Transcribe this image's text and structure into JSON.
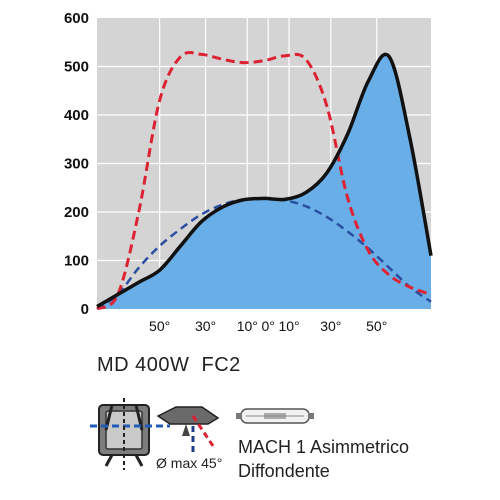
{
  "chart_data": {
    "type": "line",
    "ylim": [
      0,
      600
    ],
    "y_ticks": [
      "0",
      "100",
      "200",
      "300",
      "400",
      "500",
      "600"
    ],
    "x_tick_labels": [
      "50°",
      "30°",
      "10°",
      "0°",
      "10°",
      "30°",
      "50°"
    ],
    "grid": true,
    "series": [
      {
        "style": "solid-filled",
        "color": "#111111",
        "fill": "#6aaee8",
        "x": [
          0,
          1,
          2,
          3,
          4,
          5,
          6,
          7,
          8,
          9,
          10,
          11,
          12,
          13,
          14,
          15,
          16
        ],
        "values": [
          5,
          30,
          55,
          80,
          130,
          180,
          210,
          225,
          228,
          226,
          240,
          280,
          360,
          470,
          520,
          350,
          110
        ]
      },
      {
        "style": "dashed",
        "color": "#dd2233",
        "x": [
          0,
          1,
          2,
          3,
          4,
          5,
          6,
          7,
          8,
          9,
          10,
          11,
          12,
          13,
          14,
          15,
          16
        ],
        "values": [
          0,
          30,
          200,
          430,
          520,
          525,
          515,
          508,
          512,
          522,
          515,
          420,
          230,
          120,
          70,
          45,
          30
        ]
      },
      {
        "style": "dashed",
        "color": "#2a4ea0",
        "x": [
          0,
          1,
          2,
          3,
          4,
          5,
          6,
          7,
          8,
          9,
          10,
          11,
          12,
          13,
          14,
          15,
          16
        ],
        "values": [
          0,
          30,
          85,
          130,
          165,
          195,
          215,
          226,
          228,
          224,
          212,
          190,
          160,
          125,
          85,
          45,
          15
        ]
      }
    ]
  },
  "labels": {
    "model": "MD 400W  FC2",
    "angle_note": "Ø max 45°",
    "optic_line1": "MACH 1 Asimmetrico",
    "optic_line2": "Diffondente"
  },
  "colors": {
    "plot_bg": "#d4d4d4",
    "grid": "#ffffff",
    "fill": "#6aaee8"
  },
  "icons": [
    "floodlight-icon",
    "fixture-side-icon",
    "lamp-tube-icon"
  ]
}
